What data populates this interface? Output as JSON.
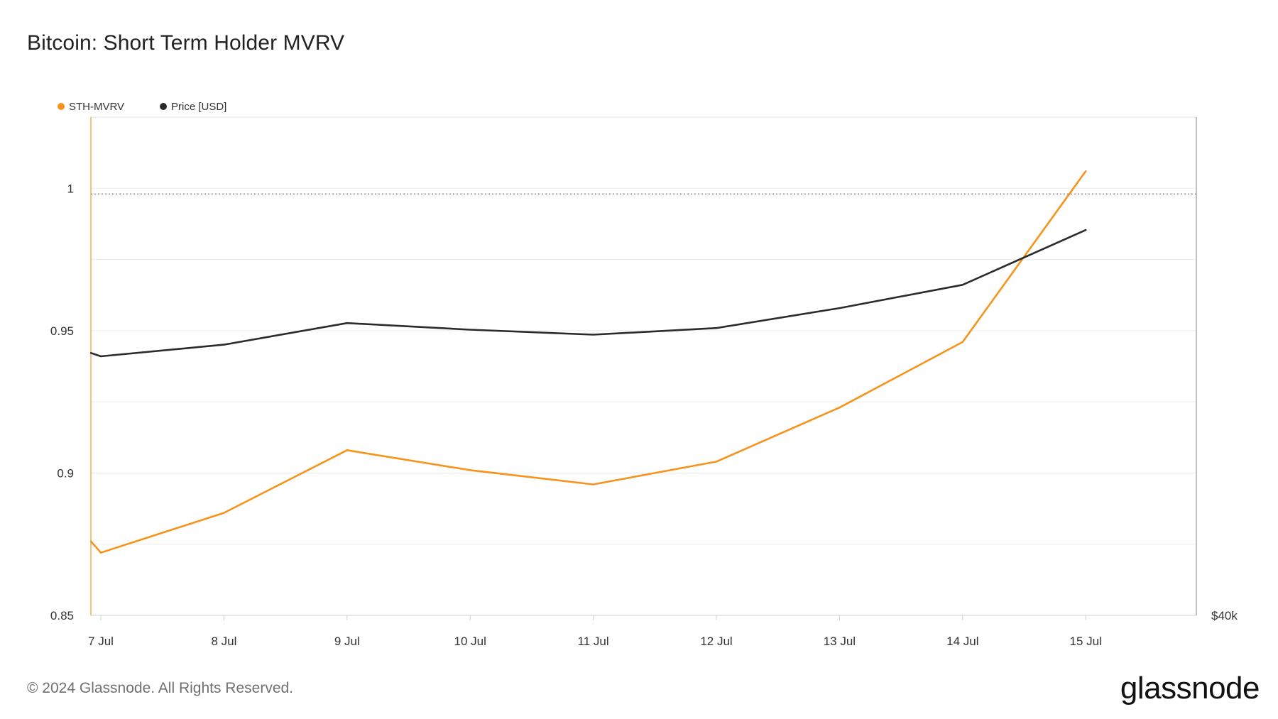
{
  "title": "Bitcoin: Short Term Holder MVRV",
  "footer": {
    "copyright": "© 2024 Glassnode. All Rights Reserved.",
    "brand": "glassnode"
  },
  "colors": {
    "sth_mvrv": "#f7931a",
    "price": "#2b2b2b",
    "grid": "#ececec",
    "reference_line": "#888888",
    "axis": "#cfcfcf"
  },
  "chart_data": {
    "type": "line",
    "title": "Bitcoin: Short Term Holder MVRV",
    "categories": [
      "7 Jul",
      "8 Jul",
      "9 Jul",
      "10 Jul",
      "11 Jul",
      "12 Jul",
      "13 Jul",
      "14 Jul",
      "15 Jul"
    ],
    "x_tick_labels": [
      "7 Jul",
      "8 Jul",
      "9 Jul",
      "10 Jul",
      "11 Jul",
      "12 Jul",
      "13 Jul",
      "14 Jul",
      "15 Jul"
    ],
    "legend": {
      "placement": "top-left",
      "entries": [
        "STH-MVRV",
        "Price [USD]"
      ]
    },
    "left_axis": {
      "ylim": [
        0.85,
        1.025
      ],
      "ticks": [
        0.85,
        0.9,
        0.95,
        1
      ],
      "tick_labels": [
        "0.85",
        "0.9",
        "0.95",
        "1"
      ]
    },
    "right_axis": {
      "tick_labels": [
        "$40k"
      ],
      "ticks": [
        40000
      ],
      "ylim": [
        40000,
        70000
      ]
    },
    "reference_line": {
      "y": 0.998,
      "style": "dotted"
    },
    "grid": true,
    "series": [
      {
        "name": "STH-MVRV",
        "axis": "left",
        "color": "#f7931a",
        "x": [
          6.92,
          7,
          8,
          9,
          10,
          11,
          12,
          13,
          14,
          15
        ],
        "values": [
          0.876,
          0.872,
          0.886,
          0.908,
          0.901,
          0.896,
          0.904,
          0.923,
          0.946,
          1.006
        ]
      },
      {
        "name": "Price [USD]",
        "axis": "right",
        "color": "#2b2b2b",
        "x": [
          6.92,
          7,
          8,
          9,
          10,
          11,
          12,
          13,
          14,
          15
        ],
        "values": [
          55800,
          55600,
          56300,
          57600,
          57200,
          56900,
          57300,
          58500,
          59900,
          63200
        ]
      }
    ]
  }
}
